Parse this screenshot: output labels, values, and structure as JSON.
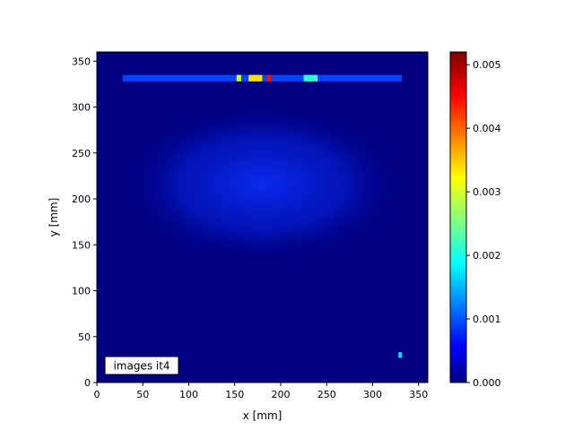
{
  "chart_data": {
    "type": "heatmap",
    "title": "",
    "xlabel": "x [mm]",
    "ylabel": "y [mm]",
    "xlim": [
      0,
      360
    ],
    "ylim": [
      0,
      360
    ],
    "x_ticks": [
      "0",
      "50",
      "100",
      "150",
      "200",
      "250",
      "300",
      "350"
    ],
    "y_ticks": [
      "0",
      "50",
      "100",
      "150",
      "200",
      "250",
      "300",
      "350"
    ],
    "colormap": "jet",
    "colorbar": {
      "vmin": 0.0,
      "vmax": 0.0052,
      "ticks": [
        "0.000",
        "0.001",
        "0.002",
        "0.003",
        "0.004",
        "0.005"
      ]
    },
    "annotation": "images it4",
    "grid": false,
    "background_value": 0.0,
    "regions": [
      {
        "name": "diffuse-dome",
        "x": [
          28,
          332
        ],
        "y": [
          140,
          310
        ],
        "value": 0.0004
      },
      {
        "name": "top-hot-line",
        "x": [
          28,
          332
        ],
        "y": [
          328,
          335
        ],
        "value": 0.001
      },
      {
        "name": "hot-spot-1",
        "x": [
          152,
          157
        ],
        "y": [
          328,
          335
        ],
        "value": 0.003
      },
      {
        "name": "hot-spot-2",
        "x": [
          165,
          180
        ],
        "y": [
          328,
          335
        ],
        "value": 0.0034
      },
      {
        "name": "hot-spot-3",
        "x": [
          185,
          190
        ],
        "y": [
          328,
          335
        ],
        "value": 0.0045
      },
      {
        "name": "hot-spot-4",
        "x": [
          225,
          240
        ],
        "y": [
          328,
          335
        ],
        "value": 0.0022
      },
      {
        "name": "corner-point",
        "x": [
          328,
          332
        ],
        "y": [
          27,
          33
        ],
        "value": 0.0018
      }
    ]
  }
}
